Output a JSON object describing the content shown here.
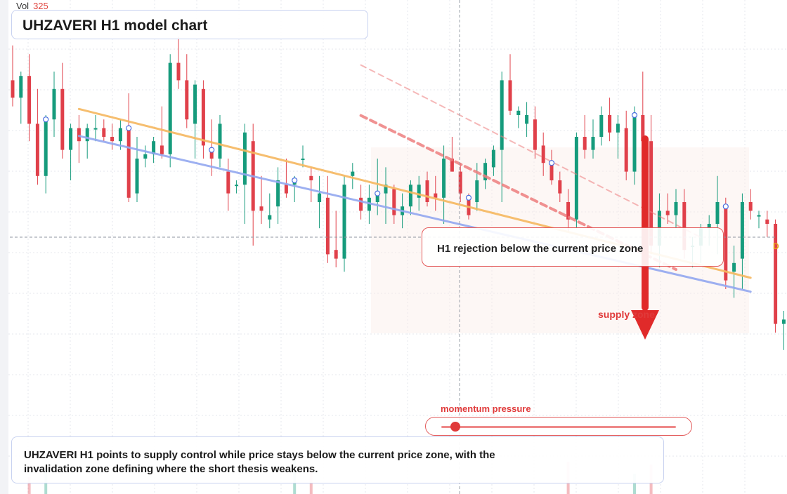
{
  "title": "UHZAVERI H1 model chart",
  "volume": {
    "label": "Vol",
    "value": "325"
  },
  "callout": "H1 rejection below the current price zone",
  "supply_label": "supply zone",
  "momentum": {
    "label": "momentum pressure",
    "level": 0.06
  },
  "note": "UHZAVERI H1 points to supply control while price stays below the current price zone, with the invalidation zone defining where the short thesis weakens.",
  "end_marker": "D",
  "colors": {
    "bull": "#169b7c",
    "bear": "#e0404a",
    "support_line": "#93a8f0",
    "resistance_line": "#f6b860",
    "down_channel": "#ee7f7f",
    "arrow": "#e02a2a"
  },
  "chart_data": {
    "type": "candlestick",
    "timeframe": "H1",
    "ylim": [
      0,
      100
    ],
    "current_price": 61,
    "series": [
      {
        "o": 88,
        "h": 96,
        "l": 82,
        "c": 84
      },
      {
        "o": 84,
        "h": 90,
        "l": 78,
        "c": 89
      },
      {
        "o": 89,
        "h": 94,
        "l": 74,
        "c": 78
      },
      {
        "o": 78,
        "h": 86,
        "l": 64,
        "c": 66
      },
      {
        "o": 66,
        "h": 80,
        "l": 62,
        "c": 79
      },
      {
        "o": 79,
        "h": 90,
        "l": 75,
        "c": 86
      },
      {
        "o": 86,
        "h": 92,
        "l": 70,
        "c": 72
      },
      {
        "o": 72,
        "h": 78,
        "l": 65,
        "c": 77
      },
      {
        "o": 77,
        "h": 80,
        "l": 69,
        "c": 74
      },
      {
        "o": 74,
        "h": 78,
        "l": 70,
        "c": 77
      },
      {
        "o": 77,
        "h": 80,
        "l": 74,
        "c": 77
      },
      {
        "o": 77,
        "h": 79,
        "l": 74,
        "c": 75
      },
      {
        "o": 75,
        "h": 78,
        "l": 72,
        "c": 74
      },
      {
        "o": 74,
        "h": 79,
        "l": 72,
        "c": 77
      },
      {
        "o": 77,
        "h": 85,
        "l": 60,
        "c": 61
      },
      {
        "o": 62,
        "h": 75,
        "l": 60,
        "c": 70
      },
      {
        "o": 70,
        "h": 73,
        "l": 68,
        "c": 71
      },
      {
        "o": 71,
        "h": 75,
        "l": 69,
        "c": 74
      },
      {
        "o": 73,
        "h": 82,
        "l": 70,
        "c": 71
      },
      {
        "o": 71,
        "h": 94,
        "l": 68,
        "c": 92
      },
      {
        "o": 92,
        "h": 98,
        "l": 86,
        "c": 88
      },
      {
        "o": 88,
        "h": 94,
        "l": 77,
        "c": 79
      },
      {
        "o": 78,
        "h": 88,
        "l": 70,
        "c": 87
      },
      {
        "o": 86,
        "h": 88,
        "l": 70,
        "c": 73
      },
      {
        "o": 72,
        "h": 79,
        "l": 66,
        "c": 70
      },
      {
        "o": 70,
        "h": 80,
        "l": 68,
        "c": 78
      },
      {
        "o": 67,
        "h": 70,
        "l": 58,
        "c": 62
      },
      {
        "o": 64,
        "h": 65,
        "l": 62,
        "c": 64
      },
      {
        "o": 64,
        "h": 78,
        "l": 55,
        "c": 76
      },
      {
        "o": 74,
        "h": 78,
        "l": 50,
        "c": 58
      },
      {
        "o": 59,
        "h": 66,
        "l": 55,
        "c": 58
      },
      {
        "o": 56,
        "h": 62,
        "l": 54,
        "c": 57
      },
      {
        "o": 59,
        "h": 68,
        "l": 55,
        "c": 65
      },
      {
        "o": 64,
        "h": 70,
        "l": 61,
        "c": 62
      },
      {
        "o": 64,
        "h": 66,
        "l": 60,
        "c": 65
      },
      {
        "o": 70,
        "h": 73,
        "l": 68,
        "c": 70
      },
      {
        "o": 66,
        "h": 68,
        "l": 60,
        "c": 65
      },
      {
        "o": 60,
        "h": 66,
        "l": 54,
        "c": 62
      },
      {
        "o": 61,
        "h": 66,
        "l": 46,
        "c": 48
      },
      {
        "o": 49,
        "h": 58,
        "l": 45,
        "c": 47
      },
      {
        "o": 47,
        "h": 66,
        "l": 44,
        "c": 64
      },
      {
        "o": 66,
        "h": 69,
        "l": 63,
        "c": 67
      },
      {
        "o": 61,
        "h": 64,
        "l": 56,
        "c": 58
      },
      {
        "o": 58,
        "h": 64,
        "l": 55,
        "c": 61
      },
      {
        "o": 60,
        "h": 70,
        "l": 57,
        "c": 62
      },
      {
        "o": 62,
        "h": 68,
        "l": 55,
        "c": 64
      },
      {
        "o": 63,
        "h": 64,
        "l": 55,
        "c": 57
      },
      {
        "o": 57,
        "h": 62,
        "l": 54,
        "c": 59
      },
      {
        "o": 59,
        "h": 65,
        "l": 57,
        "c": 64
      },
      {
        "o": 61,
        "h": 66,
        "l": 58,
        "c": 64
      },
      {
        "o": 65,
        "h": 67,
        "l": 59,
        "c": 60
      },
      {
        "o": 62,
        "h": 66,
        "l": 58,
        "c": 61
      },
      {
        "o": 61,
        "h": 73,
        "l": 55,
        "c": 70
      },
      {
        "o": 70,
        "h": 75,
        "l": 67,
        "c": 67
      },
      {
        "o": 67,
        "h": 69,
        "l": 60,
        "c": 62
      },
      {
        "o": 61,
        "h": 62,
        "l": 56,
        "c": 57
      },
      {
        "o": 60,
        "h": 69,
        "l": 58,
        "c": 65
      },
      {
        "o": 65,
        "h": 70,
        "l": 63,
        "c": 69
      },
      {
        "o": 68,
        "h": 73,
        "l": 66,
        "c": 72
      },
      {
        "o": 72,
        "h": 90,
        "l": 60,
        "c": 88
      },
      {
        "o": 88,
        "h": 94,
        "l": 80,
        "c": 81
      },
      {
        "o": 80,
        "h": 82,
        "l": 77,
        "c": 81
      },
      {
        "o": 78,
        "h": 83,
        "l": 75,
        "c": 80
      },
      {
        "o": 79,
        "h": 82,
        "l": 70,
        "c": 72
      },
      {
        "o": 73,
        "h": 76,
        "l": 66,
        "c": 69
      },
      {
        "o": 69,
        "h": 72,
        "l": 64,
        "c": 65
      },
      {
        "o": 65,
        "h": 67,
        "l": 60,
        "c": 62
      },
      {
        "o": 60,
        "h": 63,
        "l": 53,
        "c": 56
      },
      {
        "o": 56,
        "h": 76,
        "l": 54,
        "c": 75
      },
      {
        "o": 75,
        "h": 80,
        "l": 70,
        "c": 72
      },
      {
        "o": 72,
        "h": 79,
        "l": 70,
        "c": 75
      },
      {
        "o": 75,
        "h": 82,
        "l": 73,
        "c": 80
      },
      {
        "o": 80,
        "h": 84,
        "l": 74,
        "c": 76
      },
      {
        "o": 76,
        "h": 80,
        "l": 70,
        "c": 78
      },
      {
        "o": 77,
        "h": 81,
        "l": 65,
        "c": 67
      },
      {
        "o": 67,
        "h": 82,
        "l": 64,
        "c": 80
      },
      {
        "o": 80,
        "h": 90,
        "l": 72,
        "c": 74
      },
      {
        "o": 74,
        "h": 80,
        "l": 48,
        "c": 50
      },
      {
        "o": 50,
        "h": 62,
        "l": 45,
        "c": 58
      },
      {
        "o": 58,
        "h": 62,
        "l": 55,
        "c": 57
      },
      {
        "o": 57,
        "h": 63,
        "l": 54,
        "c": 60
      },
      {
        "o": 60,
        "h": 63,
        "l": 47,
        "c": 49
      },
      {
        "o": 50,
        "h": 52,
        "l": 45,
        "c": 50
      },
      {
        "o": 50,
        "h": 55,
        "l": 46,
        "c": 54
      },
      {
        "o": 54,
        "h": 57,
        "l": 50,
        "c": 55
      },
      {
        "o": 55,
        "h": 66,
        "l": 48,
        "c": 60
      },
      {
        "o": 59,
        "h": 61,
        "l": 40,
        "c": 42
      },
      {
        "o": 44,
        "h": 50,
        "l": 38,
        "c": 46
      },
      {
        "o": 47,
        "h": 62,
        "l": 40,
        "c": 60
      },
      {
        "o": 60,
        "h": 63,
        "l": 56,
        "c": 58
      },
      {
        "o": 57,
        "h": 58,
        "l": 54,
        "c": 57
      },
      {
        "o": 56,
        "h": 58,
        "l": 52,
        "c": 55
      },
      {
        "o": 55,
        "h": 56,
        "l": 30,
        "c": 32
      },
      {
        "o": 32,
        "h": 35,
        "l": 26,
        "c": 33
      }
    ],
    "trendlines": [
      {
        "name": "resistance",
        "from": [
          8,
          81.4
        ],
        "to": [
          89,
          42.6
        ]
      },
      {
        "name": "support",
        "from": [
          8,
          75.2
        ],
        "to": [
          89,
          39.4
        ]
      },
      {
        "name": "channel-upper",
        "from": [
          42,
          91.5
        ],
        "to": [
          83,
          51.9
        ]
      },
      {
        "name": "channel-lower",
        "from": [
          42,
          79.9
        ],
        "to": [
          80,
          44.5
        ]
      }
    ]
  }
}
